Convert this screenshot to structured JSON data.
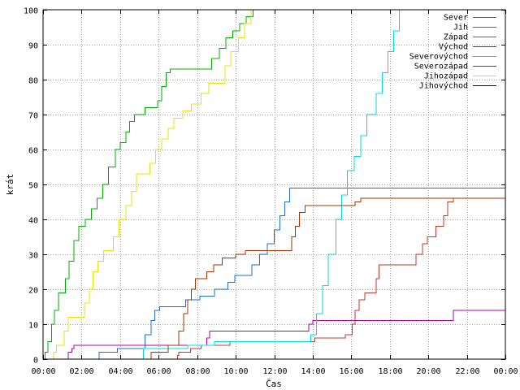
{
  "chart_data": {
    "type": "line",
    "xlabel": "Čas",
    "ylabel": "krát",
    "xlim": [
      0,
      24
    ],
    "ylim": [
      0,
      100
    ],
    "x_unit": "hours",
    "x_ticks": [
      "00:00",
      "02:00",
      "04:00",
      "06:00",
      "08:00",
      "10:00",
      "12:00",
      "14:00",
      "16:00",
      "18:00",
      "20:00",
      "22:00",
      "00:00"
    ],
    "y_ticks": [
      "0",
      "10",
      "20",
      "30",
      "40",
      "50",
      "60",
      "70",
      "80",
      "90",
      "100"
    ],
    "grid": true,
    "legend_position": "top-right",
    "series": [
      {
        "name": "Sever",
        "color": "#c0392b",
        "points": [
          [
            0,
            0
          ],
          [
            6.98,
            0
          ],
          [
            6.98,
            1
          ],
          [
            7.05,
            1
          ],
          [
            7.05,
            2
          ],
          [
            7.65,
            2
          ],
          [
            7.65,
            3
          ],
          [
            8.2,
            3
          ],
          [
            8.2,
            4
          ],
          [
            9.7,
            4
          ],
          [
            9.7,
            5
          ],
          [
            14.1,
            5
          ],
          [
            14.1,
            6
          ],
          [
            15.7,
            6
          ],
          [
            15.7,
            7
          ],
          [
            16.05,
            7
          ],
          [
            16.05,
            10
          ],
          [
            16.2,
            10
          ],
          [
            16.2,
            14
          ],
          [
            16.4,
            14
          ],
          [
            16.4,
            17
          ],
          [
            16.7,
            17
          ],
          [
            16.7,
            19
          ],
          [
            17.3,
            19
          ],
          [
            17.3,
            23
          ],
          [
            17.45,
            23
          ],
          [
            17.45,
            27
          ],
          [
            19.35,
            27
          ],
          [
            19.35,
            30
          ],
          [
            19.7,
            30
          ],
          [
            19.7,
            33
          ],
          [
            19.95,
            33
          ],
          [
            19.95,
            35
          ],
          [
            20.4,
            35
          ],
          [
            20.4,
            38
          ],
          [
            20.8,
            38
          ],
          [
            20.8,
            41
          ],
          [
            21.0,
            41
          ],
          [
            21.0,
            45
          ],
          [
            21.3,
            45
          ],
          [
            21.3,
            46
          ],
          [
            24,
            46
          ]
        ]
      },
      {
        "name": "Jih",
        "color": "#00b000",
        "points": [
          [
            0,
            0
          ],
          [
            0.1,
            0
          ],
          [
            0.1,
            2
          ],
          [
            0.25,
            2
          ],
          [
            0.25,
            5
          ],
          [
            0.45,
            5
          ],
          [
            0.45,
            10
          ],
          [
            0.6,
            10
          ],
          [
            0.6,
            14
          ],
          [
            0.8,
            14
          ],
          [
            0.8,
            19
          ],
          [
            1.15,
            19
          ],
          [
            1.15,
            23
          ],
          [
            1.35,
            23
          ],
          [
            1.35,
            28
          ],
          [
            1.6,
            28
          ],
          [
            1.6,
            34
          ],
          [
            1.85,
            34
          ],
          [
            1.85,
            38
          ],
          [
            2.2,
            38
          ],
          [
            2.2,
            40
          ],
          [
            2.5,
            40
          ],
          [
            2.5,
            43
          ],
          [
            2.8,
            43
          ],
          [
            2.8,
            46
          ],
          [
            3.1,
            46
          ],
          [
            3.1,
            50
          ],
          [
            3.4,
            50
          ],
          [
            3.4,
            55
          ],
          [
            3.75,
            55
          ],
          [
            3.75,
            60
          ],
          [
            4.0,
            60
          ],
          [
            4.0,
            62
          ],
          [
            4.3,
            62
          ],
          [
            4.3,
            65
          ],
          [
            4.5,
            65
          ],
          [
            4.5,
            68
          ],
          [
            4.75,
            68
          ],
          [
            4.75,
            70
          ],
          [
            5.3,
            70
          ],
          [
            5.3,
            72
          ],
          [
            5.95,
            72
          ],
          [
            5.95,
            74
          ],
          [
            6.15,
            74
          ],
          [
            6.15,
            78
          ],
          [
            6.4,
            78
          ],
          [
            6.4,
            82
          ],
          [
            6.6,
            82
          ],
          [
            6.6,
            83
          ],
          [
            8.75,
            83
          ],
          [
            8.75,
            86
          ],
          [
            9.15,
            86
          ],
          [
            9.15,
            89
          ],
          [
            9.5,
            89
          ],
          [
            9.5,
            92
          ],
          [
            9.85,
            92
          ],
          [
            9.85,
            94
          ],
          [
            10.2,
            94
          ],
          [
            10.2,
            96
          ],
          [
            10.55,
            96
          ],
          [
            10.55,
            98
          ],
          [
            10.9,
            98
          ],
          [
            10.9,
            100
          ],
          [
            11.0,
            100
          ]
        ]
      },
      {
        "name": "Západ",
        "color": "#1e6fd0",
        "points": [
          [
            0,
            0
          ],
          [
            2.9,
            0
          ],
          [
            2.9,
            2
          ],
          [
            3.85,
            2
          ],
          [
            3.85,
            3
          ],
          [
            5.3,
            3
          ],
          [
            5.3,
            7
          ],
          [
            5.6,
            7
          ],
          [
            5.6,
            11
          ],
          [
            5.8,
            11
          ],
          [
            5.8,
            14
          ],
          [
            6.05,
            14
          ],
          [
            6.05,
            15
          ],
          [
            7.4,
            15
          ],
          [
            7.4,
            17
          ],
          [
            8.15,
            17
          ],
          [
            8.15,
            18
          ],
          [
            8.9,
            18
          ],
          [
            8.9,
            20
          ],
          [
            9.6,
            20
          ],
          [
            9.6,
            22
          ],
          [
            9.95,
            22
          ],
          [
            9.95,
            24
          ],
          [
            10.85,
            24
          ],
          [
            10.85,
            27
          ],
          [
            11.25,
            27
          ],
          [
            11.25,
            30
          ],
          [
            11.65,
            30
          ],
          [
            11.65,
            33
          ],
          [
            12.0,
            33
          ],
          [
            12.0,
            37
          ],
          [
            12.3,
            37
          ],
          [
            12.3,
            41
          ],
          [
            12.55,
            41
          ],
          [
            12.55,
            45
          ],
          [
            12.8,
            45
          ],
          [
            12.8,
            49
          ],
          [
            24,
            49
          ]
        ]
      },
      {
        "name": "Východ",
        "color": "#b000b0",
        "points": [
          [
            0,
            0
          ],
          [
            1.3,
            0
          ],
          [
            1.3,
            2
          ],
          [
            1.5,
            2
          ],
          [
            1.5,
            3
          ],
          [
            1.6,
            3
          ],
          [
            1.6,
            4
          ],
          [
            8.5,
            4
          ],
          [
            8.5,
            6
          ],
          [
            8.65,
            6
          ],
          [
            8.65,
            8
          ],
          [
            13.8,
            8
          ],
          [
            13.8,
            10
          ],
          [
            14.0,
            10
          ],
          [
            14.0,
            11
          ],
          [
            21.3,
            11
          ],
          [
            21.3,
            14
          ],
          [
            24,
            14
          ]
        ]
      },
      {
        "name": "Severovýchod",
        "color": "#00d8e8",
        "points": [
          [
            0,
            0
          ],
          [
            5.2,
            0
          ],
          [
            5.2,
            3
          ],
          [
            7.5,
            3
          ],
          [
            7.5,
            4
          ],
          [
            8.9,
            4
          ],
          [
            8.9,
            5
          ],
          [
            13.9,
            5
          ],
          [
            13.9,
            7
          ],
          [
            14.2,
            7
          ],
          [
            14.2,
            13
          ],
          [
            14.5,
            13
          ],
          [
            14.5,
            21
          ],
          [
            14.8,
            21
          ],
          [
            14.8,
            30
          ],
          [
            15.2,
            30
          ],
          [
            15.2,
            40
          ],
          [
            15.5,
            40
          ],
          [
            15.5,
            47
          ],
          [
            15.8,
            47
          ],
          [
            15.8,
            54
          ],
          [
            16.15,
            54
          ],
          [
            16.15,
            58
          ],
          [
            16.5,
            58
          ],
          [
            16.5,
            64
          ],
          [
            16.8,
            64
          ],
          [
            16.8,
            70
          ],
          [
            17.3,
            70
          ],
          [
            17.3,
            76
          ],
          [
            17.6,
            76
          ],
          [
            17.6,
            82
          ],
          [
            17.9,
            82
          ],
          [
            17.9,
            88
          ],
          [
            18.2,
            88
          ],
          [
            18.2,
            94
          ],
          [
            18.5,
            94
          ],
          [
            18.5,
            100
          ],
          [
            18.6,
            100
          ]
        ]
      },
      {
        "name": "Severozápad",
        "color": "#b03000",
        "points": [
          [
            0,
            0
          ],
          [
            5.6,
            0
          ],
          [
            5.6,
            2
          ],
          [
            6.5,
            2
          ],
          [
            6.5,
            4
          ],
          [
            7.05,
            4
          ],
          [
            7.05,
            8
          ],
          [
            7.3,
            8
          ],
          [
            7.3,
            13
          ],
          [
            7.5,
            13
          ],
          [
            7.5,
            17
          ],
          [
            7.7,
            17
          ],
          [
            7.7,
            20
          ],
          [
            7.9,
            20
          ],
          [
            7.9,
            23
          ],
          [
            8.5,
            23
          ],
          [
            8.5,
            25
          ],
          [
            8.85,
            25
          ],
          [
            8.85,
            27
          ],
          [
            9.3,
            27
          ],
          [
            9.3,
            29
          ],
          [
            10.0,
            29
          ],
          [
            10.0,
            30
          ],
          [
            10.5,
            30
          ],
          [
            10.5,
            31
          ],
          [
            12.9,
            31
          ],
          [
            12.9,
            35
          ],
          [
            13.1,
            35
          ],
          [
            13.1,
            38
          ],
          [
            13.3,
            38
          ],
          [
            13.3,
            42
          ],
          [
            13.6,
            42
          ],
          [
            13.6,
            44
          ],
          [
            16.2,
            44
          ],
          [
            16.2,
            45
          ],
          [
            16.5,
            45
          ],
          [
            16.5,
            46
          ],
          [
            24,
            46
          ]
        ]
      },
      {
        "name": "Jihozápad",
        "color": "#f0e000",
        "points": [
          [
            0,
            0
          ],
          [
            0.55,
            0
          ],
          [
            0.55,
            2
          ],
          [
            0.7,
            2
          ],
          [
            0.7,
            4
          ],
          [
            1.1,
            4
          ],
          [
            1.1,
            8
          ],
          [
            1.3,
            8
          ],
          [
            1.3,
            12
          ],
          [
            2.15,
            12
          ],
          [
            2.15,
            16
          ],
          [
            2.4,
            16
          ],
          [
            2.4,
            20
          ],
          [
            2.6,
            20
          ],
          [
            2.6,
            25
          ],
          [
            2.85,
            25
          ],
          [
            2.85,
            28
          ],
          [
            3.15,
            28
          ],
          [
            3.15,
            31
          ],
          [
            3.65,
            31
          ],
          [
            3.65,
            35
          ],
          [
            3.95,
            35
          ],
          [
            3.95,
            40
          ],
          [
            4.3,
            40
          ],
          [
            4.3,
            44
          ],
          [
            4.6,
            44
          ],
          [
            4.6,
            48
          ],
          [
            4.85,
            48
          ],
          [
            4.85,
            53
          ],
          [
            5.55,
            53
          ],
          [
            5.55,
            56
          ],
          [
            5.85,
            56
          ],
          [
            5.85,
            60
          ],
          [
            6.15,
            60
          ],
          [
            6.15,
            63
          ],
          [
            6.5,
            63
          ],
          [
            6.5,
            66
          ],
          [
            6.8,
            66
          ],
          [
            6.8,
            69
          ],
          [
            7.25,
            69
          ],
          [
            7.25,
            71
          ],
          [
            7.7,
            71
          ],
          [
            7.7,
            73
          ],
          [
            8.2,
            73
          ],
          [
            8.2,
            76
          ],
          [
            8.6,
            76
          ],
          [
            8.6,
            79
          ],
          [
            9.45,
            79
          ],
          [
            9.45,
            84
          ],
          [
            9.75,
            84
          ],
          [
            9.75,
            88
          ],
          [
            10.15,
            88
          ],
          [
            10.15,
            92
          ],
          [
            10.45,
            92
          ],
          [
            10.45,
            96
          ],
          [
            10.8,
            96
          ],
          [
            10.8,
            100
          ],
          [
            10.9,
            100
          ]
        ]
      },
      {
        "name": "Jihovýchod",
        "color": "#000080",
        "points": []
      }
    ]
  }
}
